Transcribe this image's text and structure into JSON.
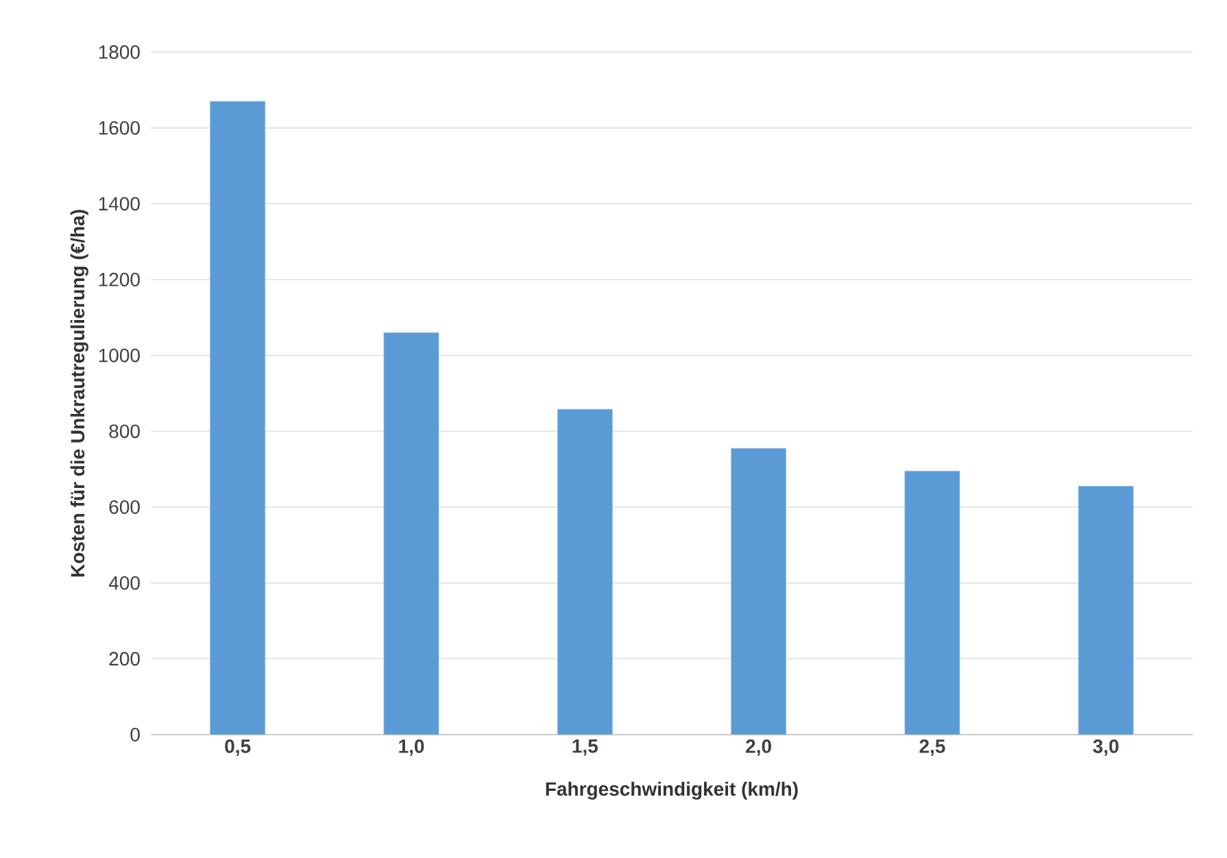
{
  "chart_data": {
    "type": "bar",
    "xlabel": "Fahrgeschwindigkeit (km/h)",
    "ylabel": "Kosten für die Unkrautregulierung (€/ha)",
    "categories": [
      "0,5",
      "1,0",
      "1,5",
      "2,0",
      "2,5",
      "3,0"
    ],
    "values": [
      1670,
      1060,
      858,
      755,
      695,
      655
    ],
    "color": "#5b9bd5",
    "ylim": [
      0,
      1800
    ],
    "yticks": [
      0,
      200,
      400,
      600,
      800,
      1000,
      1200,
      1400,
      1600,
      1800
    ],
    "grid": "y"
  }
}
